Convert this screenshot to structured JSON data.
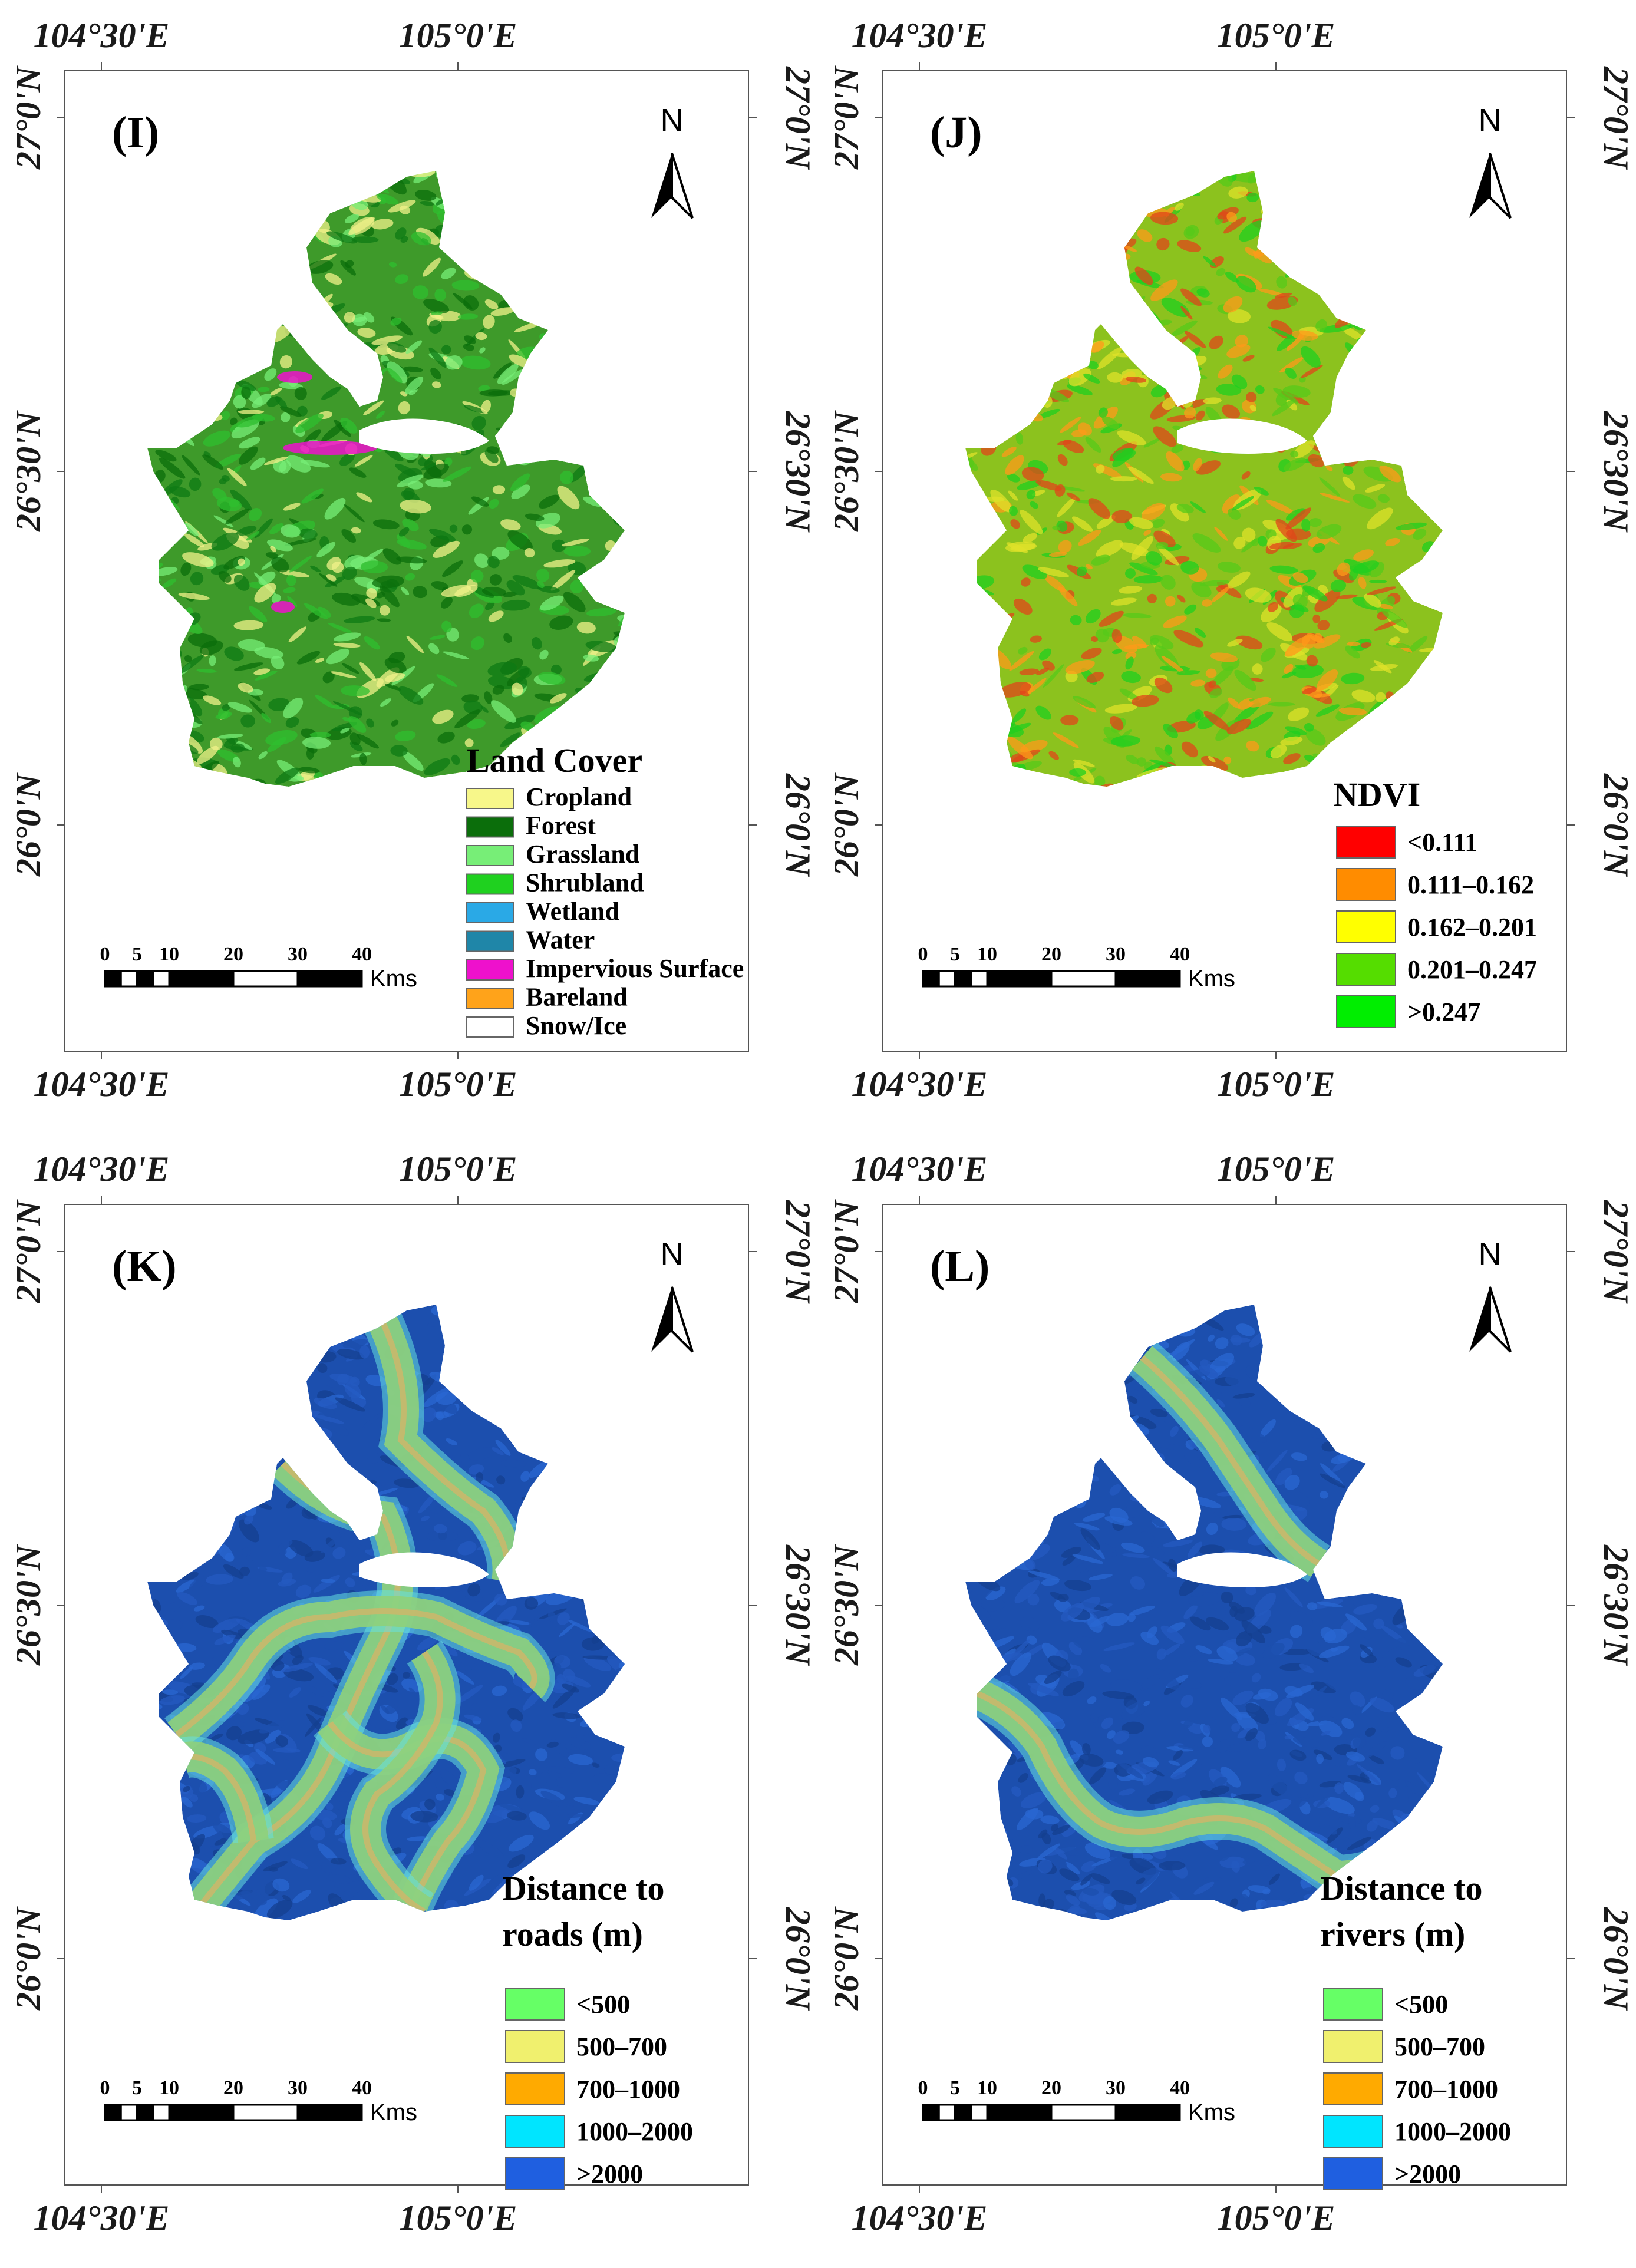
{
  "axes": {
    "lon_ticks": [
      "104°30'E",
      "105°0'E"
    ],
    "lat_ticks": [
      "27°0'N",
      "26°30'N",
      "26°0'N"
    ]
  },
  "north_label": "N",
  "scale_bar": {
    "ticks": [
      "0",
      "5",
      "10",
      "20",
      "30",
      "40"
    ],
    "unit": "Kms"
  },
  "panels": [
    {
      "tag": "(I)",
      "legend_title": [
        "Land Cover"
      ],
      "legend_items": [
        {
          "label": "Cropland",
          "color": "#f7f78a"
        },
        {
          "label": "Forest",
          "color": "#0b6e0b"
        },
        {
          "label": "Grassland",
          "color": "#77ee77"
        },
        {
          "label": "Shrubland",
          "color": "#1fd11f"
        },
        {
          "label": "Wetland",
          "color": "#2aa9e6"
        },
        {
          "label": "Water",
          "color": "#1f86a8"
        },
        {
          "label": "Impervious Surface",
          "color": "#ee11cc"
        },
        {
          "label": "Bareland",
          "color": "#ffa31a"
        },
        {
          "label": "Snow/Ice",
          "color": "#ffffff"
        }
      ],
      "map_base": "#3e9a2a",
      "map_colors": [
        "#0b6e0b",
        "#77ee77",
        "#f2f28a",
        "#2fbf2f",
        "#0e7a14"
      ],
      "accent_colors": [
        "#ee11cc"
      ]
    },
    {
      "tag": "(J)",
      "legend_title": [
        "NDVI"
      ],
      "legend_items": [
        {
          "label": "<0.111",
          "color": "#ff0000"
        },
        {
          "label": "0.111–0.162",
          "color": "#ff8c00"
        },
        {
          "label": "0.162–0.201",
          "color": "#ffff00"
        },
        {
          "label": "0.201–0.247",
          "color": "#55dd00"
        },
        {
          "label": ">0.247",
          "color": "#00ee00"
        }
      ],
      "map_base": "#8cc21e",
      "map_colors": [
        "#e0451a",
        "#ff9a1a",
        "#dfe12a",
        "#55c91a",
        "#1fcf1f"
      ],
      "accent_colors": []
    },
    {
      "tag": "(K)",
      "legend_title": [
        "Distance to",
        "roads (m)"
      ],
      "legend_items": [
        {
          "label": "<500",
          "color": "#66ff66"
        },
        {
          "label": "500–700",
          "color": "#f0f06e"
        },
        {
          "label": "700–1000",
          "color": "#ffaa00"
        },
        {
          "label": "1000–2000",
          "color": "#00e5ff"
        },
        {
          "label": ">2000",
          "color": "#1f5fe0"
        }
      ],
      "map_base": "#1c4fae",
      "map_colors": [
        "#1c4fae",
        "#2a67d1",
        "#143f8f",
        "#2459c0"
      ],
      "accent_colors": [
        "#8fd07a",
        "#c9b86b",
        "#66e0e0"
      ]
    },
    {
      "tag": "(L)",
      "legend_title": [
        "Distance to",
        "rivers (m)"
      ],
      "legend_items": [
        {
          "label": "<500",
          "color": "#66ff66"
        },
        {
          "label": "500–700",
          "color": "#f0f06e"
        },
        {
          "label": "700–1000",
          "color": "#ffaa00"
        },
        {
          "label": "1000–2000",
          "color": "#00e5ff"
        },
        {
          "label": ">2000",
          "color": "#1f5fe0"
        }
      ],
      "map_base": "#1c4fae",
      "map_colors": [
        "#1c4fae",
        "#2a67d1",
        "#143f8f",
        "#2459c0"
      ],
      "accent_colors": [
        "#8fd07a",
        "#c9b86b",
        "#66e0e0"
      ]
    }
  ]
}
